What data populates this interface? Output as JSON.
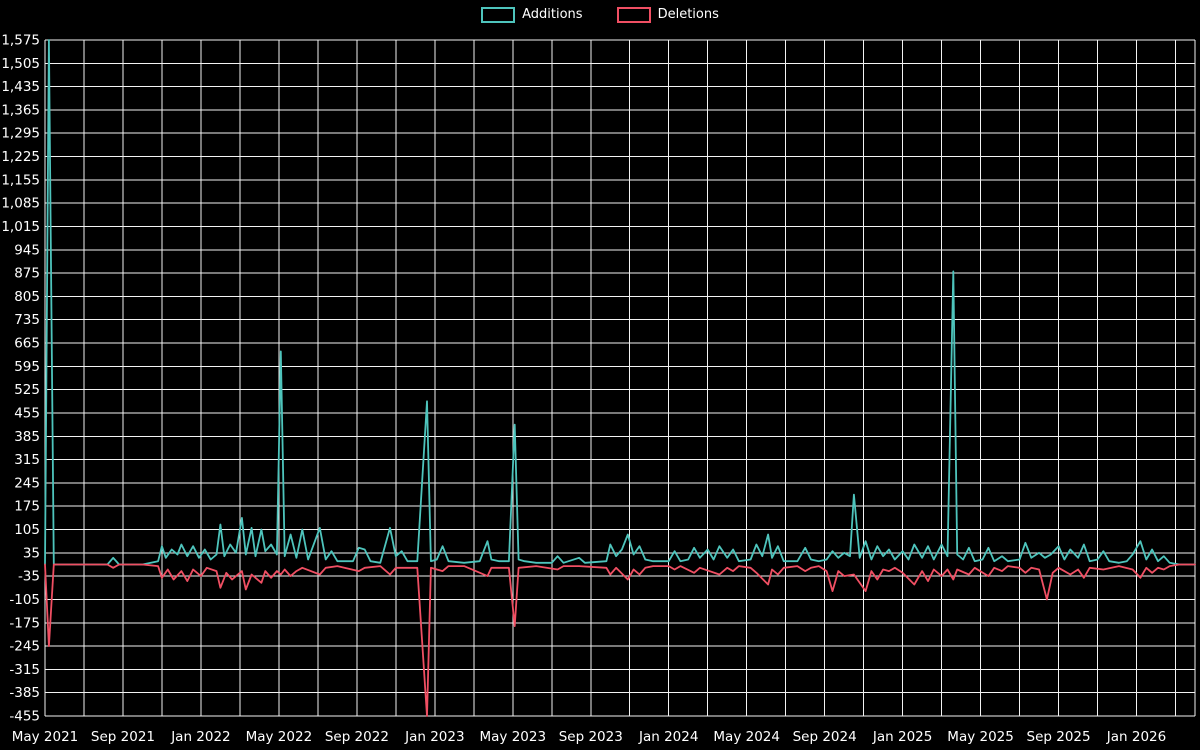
{
  "legend": {
    "additions_label": "Additions",
    "deletions_label": "Deletions"
  },
  "colors": {
    "additions": "#4ec4bc",
    "deletions": "#f04f63",
    "grid": "#f2f2f2",
    "background": "#000000",
    "text": "#ffffff"
  },
  "chart_data": {
    "type": "line",
    "title": "",
    "xlabel": "",
    "ylabel": "",
    "x_unit": "months since May 2021",
    "xlim": [
      0,
      59
    ],
    "ylim": [
      -455,
      1575
    ],
    "grid": true,
    "x_grid_step_months": 2,
    "legend_position": "top-center",
    "x_tick_months": [
      0,
      4,
      8,
      12,
      16,
      20,
      24,
      28,
      32,
      36,
      40,
      44,
      48,
      52,
      56
    ],
    "x_tick_labels": [
      "May 2021",
      "Sep 2021",
      "Jan 2022",
      "May 2022",
      "Sep 2022",
      "Jan 2023",
      "May 2023",
      "Sep 2023",
      "Jan 2024",
      "May 2024",
      "Sep 2024",
      "Jan 2025",
      "May 2025",
      "Sep 2025",
      "Jan 2026"
    ],
    "y_ticks": [
      1575,
      1505,
      1435,
      1365,
      1295,
      1225,
      1155,
      1085,
      1015,
      945,
      875,
      805,
      735,
      665,
      595,
      525,
      455,
      385,
      315,
      245,
      175,
      105,
      35,
      -35,
      -105,
      -175,
      -245,
      -315,
      -385,
      -455
    ],
    "series": [
      {
        "name": "Additions",
        "color": "#4ec4bc",
        "points": [
          [
            0,
            0
          ],
          [
            0.2,
            1575
          ],
          [
            0.45,
            0
          ],
          [
            1,
            0
          ],
          [
            2,
            0
          ],
          [
            3.2,
            0
          ],
          [
            3.5,
            20
          ],
          [
            3.8,
            0
          ],
          [
            5,
            0
          ],
          [
            5.8,
            10
          ],
          [
            6,
            55
          ],
          [
            6.2,
            20
          ],
          [
            6.5,
            45
          ],
          [
            6.8,
            30
          ],
          [
            7,
            60
          ],
          [
            7.3,
            25
          ],
          [
            7.6,
            55
          ],
          [
            7.9,
            20
          ],
          [
            8.2,
            45
          ],
          [
            8.5,
            15
          ],
          [
            8.8,
            30
          ],
          [
            9,
            120
          ],
          [
            9.2,
            25
          ],
          [
            9.5,
            60
          ],
          [
            9.8,
            35
          ],
          [
            10.1,
            140
          ],
          [
            10.3,
            30
          ],
          [
            10.6,
            110
          ],
          [
            10.8,
            25
          ],
          [
            11.1,
            105
          ],
          [
            11.3,
            40
          ],
          [
            11.6,
            60
          ],
          [
            11.9,
            30
          ],
          [
            12.1,
            640
          ],
          [
            12.3,
            25
          ],
          [
            12.6,
            90
          ],
          [
            12.9,
            20
          ],
          [
            13.2,
            105
          ],
          [
            13.5,
            15
          ],
          [
            14.1,
            110
          ],
          [
            14.4,
            15
          ],
          [
            14.7,
            40
          ],
          [
            15,
            10
          ],
          [
            15.8,
            10
          ],
          [
            16.1,
            50
          ],
          [
            16.4,
            45
          ],
          [
            16.7,
            10
          ],
          [
            17.2,
            5
          ],
          [
            17.7,
            110
          ],
          [
            18,
            25
          ],
          [
            18.3,
            40
          ],
          [
            18.6,
            10
          ],
          [
            19.1,
            10
          ],
          [
            19.6,
            490
          ],
          [
            19.8,
            10
          ],
          [
            20.1,
            15
          ],
          [
            20.4,
            55
          ],
          [
            20.7,
            10
          ],
          [
            21.5,
            5
          ],
          [
            22.3,
            10
          ],
          [
            22.7,
            70
          ],
          [
            22.9,
            15
          ],
          [
            23.3,
            10
          ],
          [
            23.8,
            10
          ],
          [
            24.1,
            420
          ],
          [
            24.3,
            15
          ],
          [
            24.6,
            10
          ],
          [
            25.2,
            5
          ],
          [
            26,
            5
          ],
          [
            26.3,
            25
          ],
          [
            26.6,
            5
          ],
          [
            27.4,
            20
          ],
          [
            27.7,
            5
          ],
          [
            28.8,
            10
          ],
          [
            29,
            60
          ],
          [
            29.3,
            25
          ],
          [
            29.6,
            45
          ],
          [
            29.9,
            90
          ],
          [
            30.2,
            30
          ],
          [
            30.5,
            55
          ],
          [
            30.8,
            15
          ],
          [
            31.2,
            10
          ],
          [
            32,
            10
          ],
          [
            32.3,
            40
          ],
          [
            32.6,
            10
          ],
          [
            33,
            15
          ],
          [
            33.3,
            50
          ],
          [
            33.6,
            20
          ],
          [
            34,
            45
          ],
          [
            34.3,
            15
          ],
          [
            34.6,
            55
          ],
          [
            35,
            20
          ],
          [
            35.3,
            45
          ],
          [
            35.6,
            10
          ],
          [
            36.2,
            15
          ],
          [
            36.5,
            60
          ],
          [
            36.8,
            25
          ],
          [
            37.1,
            90
          ],
          [
            37.3,
            20
          ],
          [
            37.6,
            55
          ],
          [
            37.9,
            10
          ],
          [
            38.6,
            10
          ],
          [
            39,
            50
          ],
          [
            39.3,
            15
          ],
          [
            39.7,
            10
          ],
          [
            40.1,
            15
          ],
          [
            40.4,
            40
          ],
          [
            40.7,
            20
          ],
          [
            41,
            35
          ],
          [
            41.3,
            25
          ],
          [
            41.5,
            210
          ],
          [
            41.8,
            20
          ],
          [
            42.1,
            70
          ],
          [
            42.4,
            15
          ],
          [
            42.7,
            55
          ],
          [
            43,
            25
          ],
          [
            43.3,
            45
          ],
          [
            43.6,
            15
          ],
          [
            44,
            40
          ],
          [
            44.3,
            15
          ],
          [
            44.6,
            60
          ],
          [
            45,
            20
          ],
          [
            45.3,
            55
          ],
          [
            45.6,
            15
          ],
          [
            46,
            60
          ],
          [
            46.3,
            25
          ],
          [
            46.6,
            880
          ],
          [
            46.8,
            30
          ],
          [
            47.1,
            15
          ],
          [
            47.4,
            50
          ],
          [
            47.7,
            10
          ],
          [
            48.1,
            15
          ],
          [
            48.4,
            50
          ],
          [
            48.7,
            10
          ],
          [
            49.1,
            25
          ],
          [
            49.4,
            10
          ],
          [
            50,
            15
          ],
          [
            50.3,
            65
          ],
          [
            50.6,
            20
          ],
          [
            51,
            35
          ],
          [
            51.3,
            20
          ],
          [
            51.6,
            30
          ],
          [
            52,
            55
          ],
          [
            52.3,
            15
          ],
          [
            52.6,
            45
          ],
          [
            53,
            20
          ],
          [
            53.3,
            60
          ],
          [
            53.6,
            10
          ],
          [
            54,
            15
          ],
          [
            54.3,
            40
          ],
          [
            54.6,
            10
          ],
          [
            55.1,
            5
          ],
          [
            55.5,
            10
          ],
          [
            55.8,
            30
          ],
          [
            56.2,
            70
          ],
          [
            56.5,
            15
          ],
          [
            56.8,
            45
          ],
          [
            57.1,
            10
          ],
          [
            57.4,
            25
          ],
          [
            57.7,
            5
          ],
          [
            58.2,
            0
          ],
          [
            59,
            0
          ]
        ]
      },
      {
        "name": "Deletions",
        "color": "#f04f63",
        "points": [
          [
            0,
            0
          ],
          [
            0.2,
            -245
          ],
          [
            0.45,
            0
          ],
          [
            1,
            0
          ],
          [
            3.2,
            0
          ],
          [
            3.5,
            -10
          ],
          [
            3.8,
            0
          ],
          [
            5,
            0
          ],
          [
            5.8,
            -5
          ],
          [
            6,
            -40
          ],
          [
            6.3,
            -15
          ],
          [
            6.6,
            -45
          ],
          [
            7,
            -20
          ],
          [
            7.3,
            -50
          ],
          [
            7.6,
            -15
          ],
          [
            8,
            -35
          ],
          [
            8.3,
            -10
          ],
          [
            8.8,
            -20
          ],
          [
            9,
            -70
          ],
          [
            9.3,
            -25
          ],
          [
            9.6,
            -45
          ],
          [
            10.1,
            -20
          ],
          [
            10.3,
            -75
          ],
          [
            10.6,
            -30
          ],
          [
            11.1,
            -55
          ],
          [
            11.3,
            -20
          ],
          [
            11.6,
            -40
          ],
          [
            11.9,
            -20
          ],
          [
            12.1,
            -30
          ],
          [
            12.3,
            -15
          ],
          [
            12.6,
            -35
          ],
          [
            12.9,
            -20
          ],
          [
            13.2,
            -10
          ],
          [
            14.1,
            -30
          ],
          [
            14.4,
            -10
          ],
          [
            15,
            -5
          ],
          [
            16.1,
            -20
          ],
          [
            16.4,
            -10
          ],
          [
            17.2,
            -5
          ],
          [
            17.7,
            -30
          ],
          [
            18,
            -10
          ],
          [
            19.1,
            -10
          ],
          [
            19.6,
            -455
          ],
          [
            19.8,
            -10
          ],
          [
            20.4,
            -20
          ],
          [
            20.7,
            -5
          ],
          [
            21.5,
            -5
          ],
          [
            22.7,
            -35
          ],
          [
            22.9,
            -10
          ],
          [
            23.8,
            -10
          ],
          [
            24.1,
            -185
          ],
          [
            24.3,
            -10
          ],
          [
            25.2,
            -5
          ],
          [
            26.3,
            -15
          ],
          [
            26.6,
            -5
          ],
          [
            27.4,
            -5
          ],
          [
            28.8,
            -10
          ],
          [
            29,
            -30
          ],
          [
            29.3,
            -10
          ],
          [
            29.9,
            -45
          ],
          [
            30.2,
            -15
          ],
          [
            30.5,
            -30
          ],
          [
            30.8,
            -10
          ],
          [
            31.2,
            -5
          ],
          [
            32,
            -5
          ],
          [
            32.3,
            -15
          ],
          [
            32.6,
            -5
          ],
          [
            33.3,
            -25
          ],
          [
            33.6,
            -10
          ],
          [
            34.6,
            -30
          ],
          [
            35,
            -10
          ],
          [
            35.3,
            -20
          ],
          [
            35.6,
            -5
          ],
          [
            36.2,
            -10
          ],
          [
            36.5,
            -25
          ],
          [
            37.1,
            -60
          ],
          [
            37.3,
            -15
          ],
          [
            37.6,
            -30
          ],
          [
            37.9,
            -10
          ],
          [
            38.6,
            -5
          ],
          [
            39,
            -20
          ],
          [
            39.3,
            -10
          ],
          [
            39.7,
            -5
          ],
          [
            40.1,
            -20
          ],
          [
            40.4,
            -80
          ],
          [
            40.7,
            -20
          ],
          [
            41,
            -35
          ],
          [
            41.5,
            -30
          ],
          [
            42.1,
            -80
          ],
          [
            42.4,
            -20
          ],
          [
            42.7,
            -45
          ],
          [
            43,
            -15
          ],
          [
            43.3,
            -20
          ],
          [
            43.6,
            -10
          ],
          [
            44,
            -25
          ],
          [
            44.6,
            -60
          ],
          [
            45,
            -20
          ],
          [
            45.3,
            -50
          ],
          [
            45.6,
            -15
          ],
          [
            46,
            -35
          ],
          [
            46.3,
            -15
          ],
          [
            46.6,
            -45
          ],
          [
            46.8,
            -15
          ],
          [
            47.4,
            -30
          ],
          [
            47.7,
            -10
          ],
          [
            48.4,
            -35
          ],
          [
            48.7,
            -10
          ],
          [
            49.1,
            -20
          ],
          [
            49.4,
            -5
          ],
          [
            50,
            -10
          ],
          [
            50.3,
            -25
          ],
          [
            50.6,
            -10
          ],
          [
            51,
            -15
          ],
          [
            51.4,
            -105
          ],
          [
            51.7,
            -25
          ],
          [
            52,
            -10
          ],
          [
            52.6,
            -30
          ],
          [
            53,
            -15
          ],
          [
            53.3,
            -40
          ],
          [
            53.6,
            -10
          ],
          [
            54.3,
            -15
          ],
          [
            55.1,
            -5
          ],
          [
            55.8,
            -15
          ],
          [
            56.2,
            -40
          ],
          [
            56.5,
            -10
          ],
          [
            56.8,
            -25
          ],
          [
            57.1,
            -10
          ],
          [
            57.4,
            -15
          ],
          [
            57.7,
            -5
          ],
          [
            58.2,
            0
          ],
          [
            59,
            0
          ]
        ]
      }
    ]
  }
}
